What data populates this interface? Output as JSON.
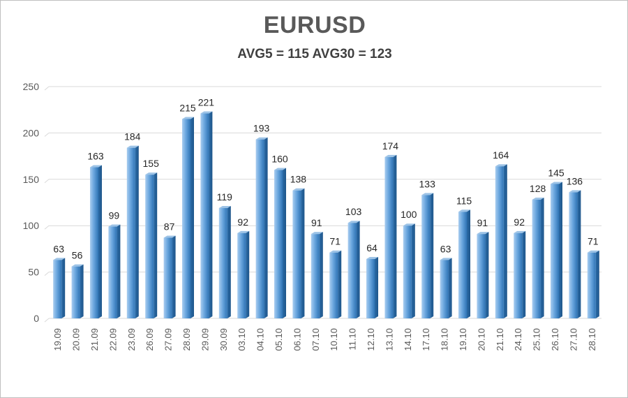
{
  "chart_data": {
    "type": "bar",
    "title": "EURUSD",
    "subtitle": "AVG5 = 115 AVG30 = 123",
    "xlabel": "",
    "ylabel": "",
    "ylim": [
      0,
      250
    ],
    "yticks": [
      0,
      50,
      100,
      150,
      200,
      250
    ],
    "grid": true,
    "categories": [
      "19.09",
      "20.09",
      "21.09",
      "22.09",
      "23.09",
      "26.09",
      "27.09",
      "28.09",
      "29.09",
      "30.09",
      "03.10",
      "04.10",
      "05.10",
      "06.10",
      "07.10",
      "10.10",
      "11.10",
      "12.10",
      "13.10",
      "14.10",
      "17.10",
      "18.10",
      "19.10",
      "20.10",
      "21.10",
      "24.10",
      "25.10",
      "26.10",
      "27.10",
      "28.10"
    ],
    "values": [
      63,
      56,
      163,
      99,
      184,
      155,
      87,
      215,
      221,
      119,
      92,
      193,
      160,
      138,
      91,
      71,
      103,
      64,
      174,
      100,
      133,
      63,
      115,
      91,
      164,
      92,
      128,
      145,
      136,
      71
    ],
    "colors": {
      "bar": "#5b9bd5",
      "bar_dark": "#2e75b6",
      "bar_light": "#9dc3e6",
      "grid": "#d9d9d9"
    }
  }
}
